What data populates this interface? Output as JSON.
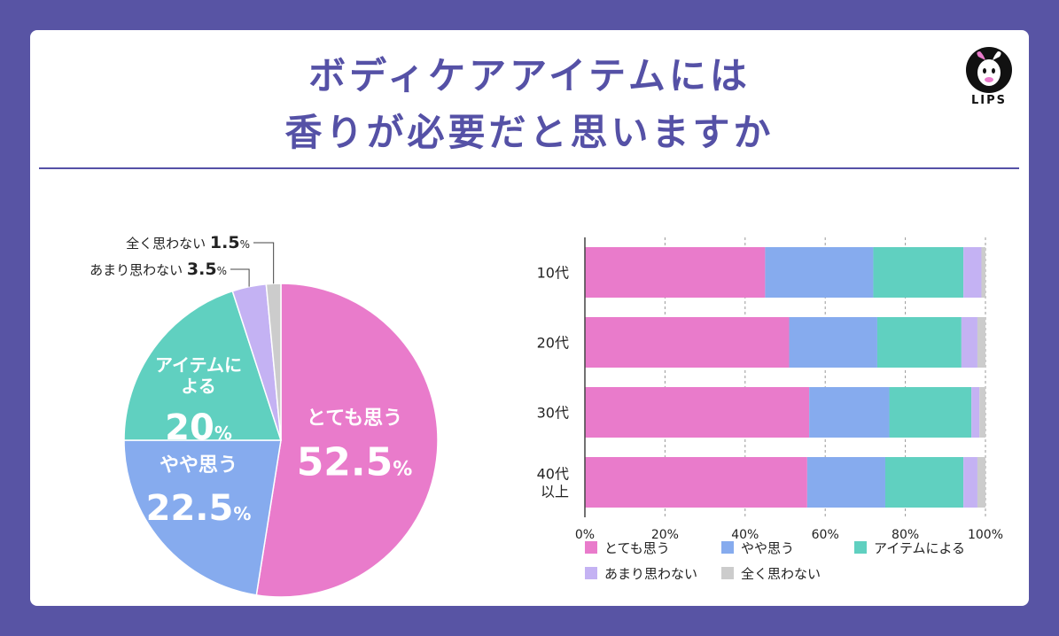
{
  "title_line1": "ボディケアアイテムには",
  "title_line2": "香りが必要だと思いますか",
  "logo": {
    "text": "LIPS",
    "icon": "lips-deer-logo-icon"
  },
  "colors": {
    "background": "#5854a4",
    "accent": "#5551a6",
    "とても思う": "#e97bcb",
    "やや思う": "#86abee",
    "アイテムによる": "#60d0c0",
    "あまり思わない": "#c4b2f3",
    "全く思わない": "#cccccc"
  },
  "chart_data": [
    {
      "type": "pie",
      "slices": [
        {
          "label": "とても思う",
          "value": 52.5,
          "display": "52.5",
          "unit": "%"
        },
        {
          "label": "やや思う",
          "value": 22.5,
          "display": "22.5",
          "unit": "%"
        },
        {
          "label": "アイテムによる",
          "label_lines": [
            "アイテムに",
            "よる"
          ],
          "value": 20,
          "display": "20",
          "unit": "%"
        },
        {
          "label": "あまり思わない",
          "value": 3.5,
          "display": "3.5",
          "unit": "%"
        },
        {
          "label": "全く思わない",
          "value": 1.5,
          "display": "1.5",
          "unit": "%"
        }
      ]
    },
    {
      "type": "bar",
      "orientation": "horizontal",
      "stacked": true,
      "categories": [
        "10代",
        "20代",
        "30代",
        "40代以上"
      ],
      "category_lines": [
        [
          "10代"
        ],
        [
          "20代"
        ],
        [
          "30代"
        ],
        [
          "40代",
          "以上"
        ]
      ],
      "series": [
        {
          "name": "とても思う",
          "values": [
            45,
            51,
            56,
            55.5
          ]
        },
        {
          "name": "やや思う",
          "values": [
            27,
            22,
            20,
            19.5
          ]
        },
        {
          "name": "アイテムによる",
          "values": [
            22.5,
            21,
            20.5,
            19.5
          ]
        },
        {
          "name": "あまり思わない",
          "values": [
            4.5,
            4,
            2,
            3.5
          ]
        },
        {
          "name": "全く思わない",
          "values": [
            1,
            2,
            1.5,
            2
          ]
        }
      ],
      "xlim": [
        0,
        100
      ],
      "xticks": [
        "0%",
        "20%",
        "40%",
        "60%",
        "80%",
        "100%"
      ],
      "grid": true,
      "legend_position": "bottom"
    }
  ]
}
